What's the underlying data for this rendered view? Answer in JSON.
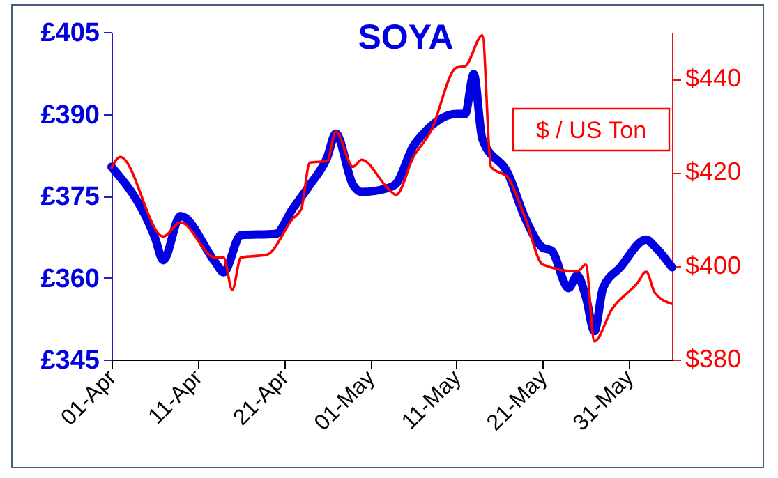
{
  "chart_data": {
    "type": "line",
    "title": "SOYA",
    "y2label": "$ / US Ton",
    "xlim": [
      "--04-01",
      "--06-05"
    ],
    "xticks": [
      {
        "value": "--04-01",
        "label": "01-Apr"
      },
      {
        "value": "--04-11",
        "label": "11-Apr"
      },
      {
        "value": "--04-21",
        "label": "21-Apr"
      },
      {
        "value": "--05-01",
        "label": "01-May"
      },
      {
        "value": "--05-11",
        "label": "11-May"
      },
      {
        "value": "--05-21",
        "label": "21-May"
      },
      {
        "value": "--05-31",
        "label": "31-May"
      }
    ],
    "ylim": [
      345,
      405
    ],
    "yticks": [
      {
        "value": 345,
        "label": "£345"
      },
      {
        "value": 360,
        "label": "£360"
      },
      {
        "value": 375,
        "label": "£375"
      },
      {
        "value": 390,
        "label": "£390"
      },
      {
        "value": 405,
        "label": "£405"
      }
    ],
    "y2lim": [
      380,
      450
    ],
    "y2ticks": [
      {
        "value": 380,
        "label": "$380"
      },
      {
        "value": 400,
        "label": "$400"
      },
      {
        "value": 420,
        "label": "$420"
      },
      {
        "value": 440,
        "label": "$440"
      }
    ],
    "grid": false,
    "marker": "none",
    "series": [
      {
        "color": "#0000e0",
        "x": [
          "--04-01",
          "--04-06",
          "--04-07",
          "--04-09",
          "--04-13",
          "--04-14",
          "--04-16",
          "--04-20",
          "--04-22",
          "--04-24",
          "--04-26",
          "--04-27",
          "--04-29",
          "--04-30",
          "--05-03",
          "--05-04",
          "--05-06",
          "--05-07",
          "--05-11",
          "--05-12",
          "--05-13",
          "--05-14",
          "--05-17",
          "--05-19",
          "--05-21",
          "--05-22",
          "--05-24",
          "--05-25",
          "--05-26",
          "--05-27",
          "--05-28",
          "--05-30",
          "--06-02",
          "--06-03",
          "--06-05"
        ],
        "values": [
          380.3,
          367.5,
          363.2,
          371.3,
          362.9,
          361,
          367.8,
          368,
          372.6,
          377,
          382,
          386.4,
          377,
          375.7,
          376.4,
          377.2,
          384.1,
          386.1,
          390,
          390,
          397.3,
          385.4,
          379,
          370.8,
          365.5,
          365,
          358.1,
          360.4,
          356.5,
          350.2,
          358.1,
          361.9,
          367,
          365.7,
          361.9
        ]
      },
      {
        "color": "#ff0000",
        "axis": "y2",
        "x": [
          "--04-01",
          "--04-02",
          "--04-07",
          "--04-09",
          "--04-13",
          "--04-14",
          "--04-15",
          "--04-16",
          "--04-19",
          "--04-22",
          "--04-23",
          "--04-24",
          "--04-26",
          "--04-27",
          "--04-29",
          "--04-30",
          "--05-03",
          "--05-04",
          "--05-06",
          "--05-08",
          "--05-11",
          "--05-12",
          "--05-14",
          "--05-15",
          "--05-17",
          "--05-19",
          "--05-21",
          "--05-25",
          "--05-26",
          "--05-27",
          "--05-29",
          "--06-01",
          "--06-02",
          "--06-03",
          "--06-05"
        ],
        "values": [
          421,
          423.3,
          406.3,
          409.3,
          401.8,
          401.8,
          394.9,
          401.8,
          402.4,
          410.1,
          412.2,
          422.1,
          422.4,
          428.7,
          421.2,
          422.7,
          416.7,
          415.2,
          423.3,
          428.7,
          442.4,
          442.7,
          449.3,
          421.2,
          418.8,
          410.1,
          400.3,
          398.8,
          400.3,
          383.9,
          390.7,
          396.4,
          398.8,
          394.3,
          391.9
        ]
      }
    ]
  }
}
